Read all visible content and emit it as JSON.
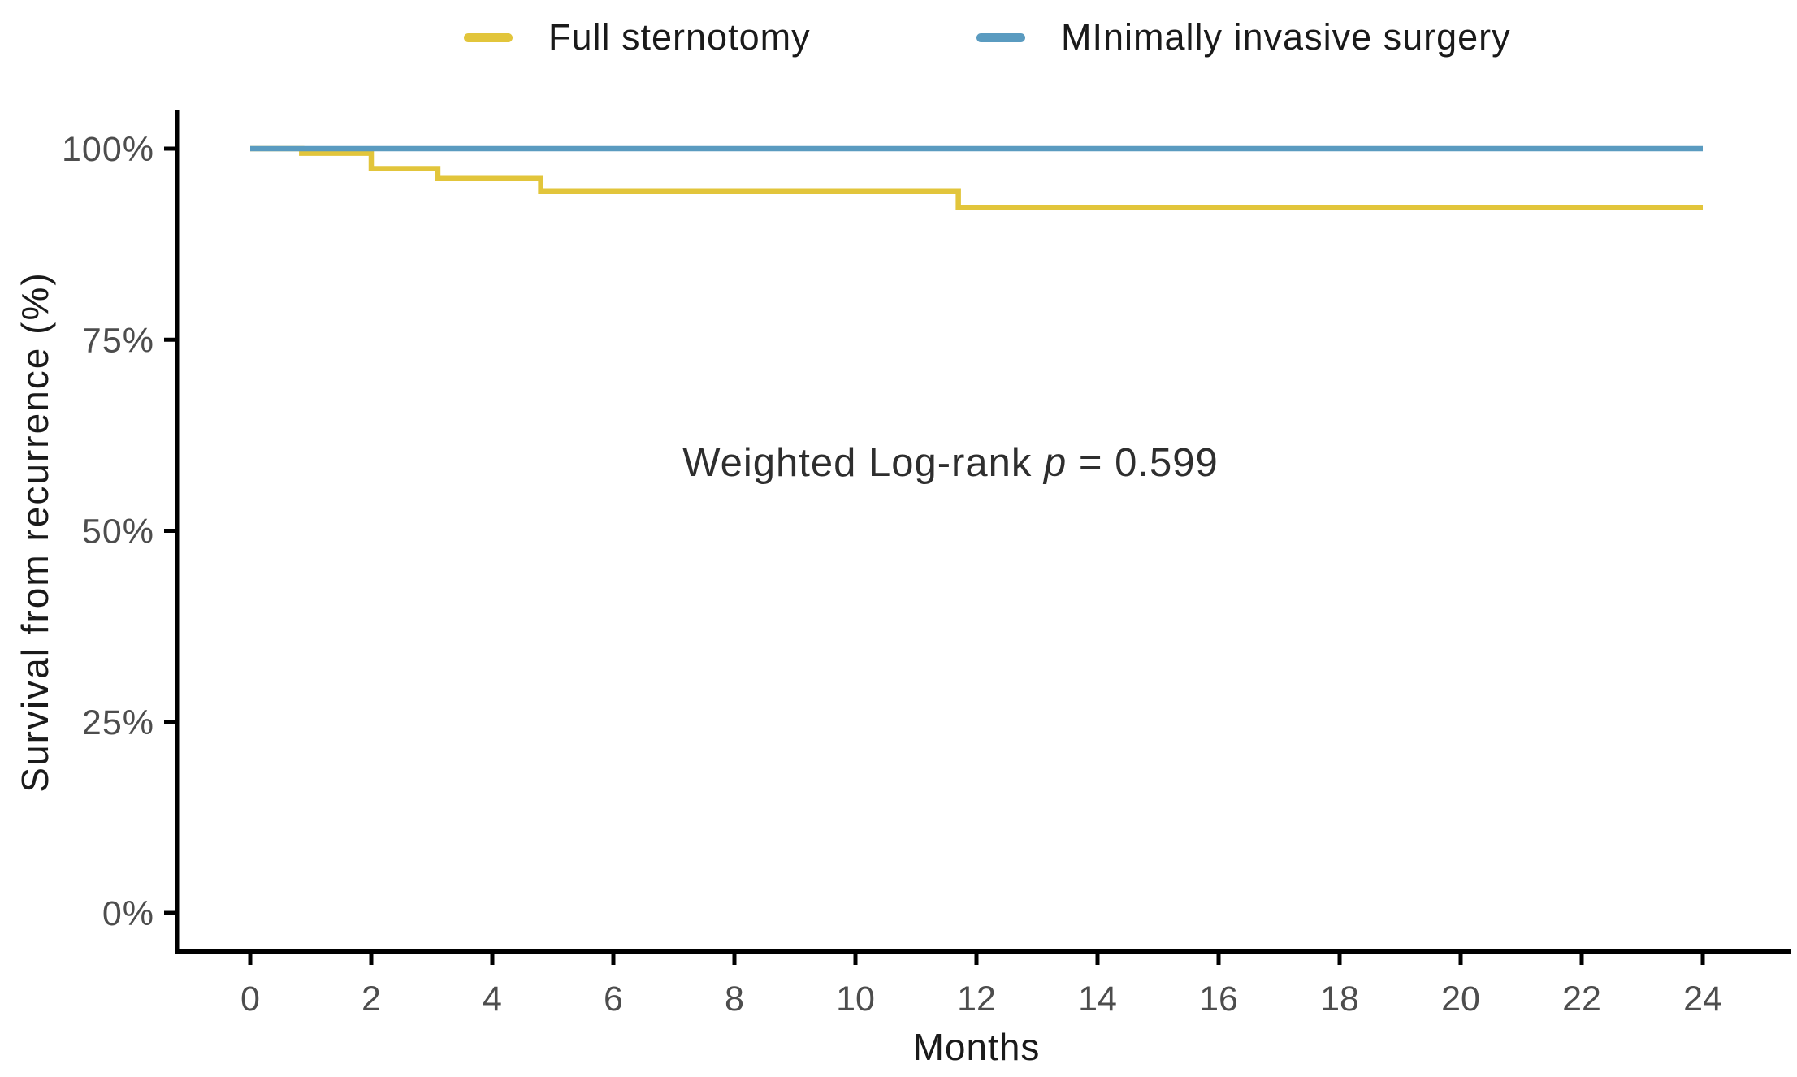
{
  "legend": {
    "items": [
      {
        "id": "full-sternotomy",
        "label": "Full sternotomy",
        "color": "#E2C53B"
      },
      {
        "id": "minimally-invasive",
        "label": "MInimally invasive surgery",
        "color": "#5A9BC0"
      }
    ]
  },
  "annotation": {
    "prefix": "Weighted Log-rank ",
    "symbol": "p",
    "suffix": " = 0.599"
  },
  "axes": {
    "x": {
      "label": "Months",
      "tick_values": [
        0,
        2,
        4,
        6,
        8,
        10,
        12,
        14,
        16,
        18,
        20,
        22,
        24
      ],
      "range": [
        0,
        24
      ]
    },
    "y": {
      "label": "Survival from recurrence (%)",
      "tick_labels": [
        "100%",
        "75%",
        "50%",
        "25%",
        "0%"
      ],
      "tick_values": [
        100,
        75,
        50,
        25,
        0
      ],
      "range": [
        0,
        100
      ]
    }
  },
  "colors": {
    "full_sternotomy": "#E2C53B",
    "minimally_invasive": "#5A9BC0",
    "axis_line": "#000000",
    "tick_text": "#4d4d4d",
    "title_text": "#1a1a1a"
  },
  "chart_data": {
    "type": "line",
    "subtype": "kaplan-meier-step",
    "title": "",
    "xlabel": "Months",
    "ylabel": "Survival from recurrence (%)",
    "xlim": [
      0,
      24
    ],
    "ylim": [
      0,
      100
    ],
    "x_ticks": [
      0,
      2,
      4,
      6,
      8,
      10,
      12,
      14,
      16,
      18,
      20,
      22,
      24
    ],
    "y_ticks_pct": [
      100,
      75,
      50,
      25,
      0
    ],
    "grid": false,
    "legend_position": "top",
    "annotation": "Weighted Log-rank p = 0.599",
    "series": [
      {
        "name": "Full sternotomy",
        "color": "#E2C53B",
        "step_points": [
          [
            0,
            100
          ],
          [
            0.85,
            99.4
          ],
          [
            2,
            97.4
          ],
          [
            3.1,
            96.1
          ],
          [
            4.8,
            94.4
          ],
          [
            11.7,
            92.3
          ],
          [
            24,
            92.3
          ]
        ]
      },
      {
        "name": "MInimally invasive surgery",
        "color": "#5A9BC0",
        "step_points": [
          [
            0,
            100
          ],
          [
            24,
            100
          ]
        ]
      }
    ]
  }
}
